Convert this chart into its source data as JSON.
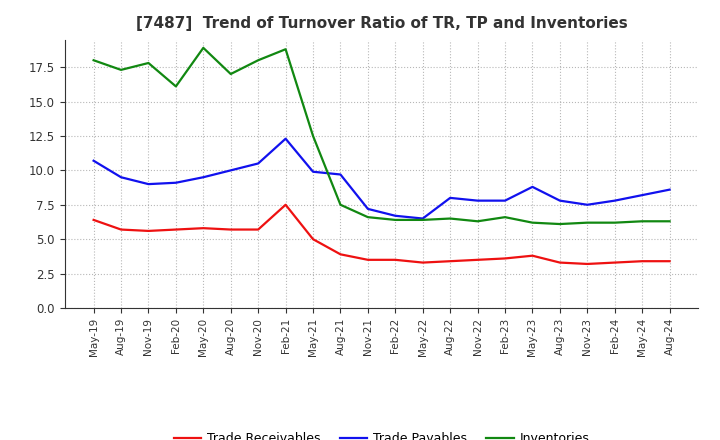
{
  "title": "[7487]  Trend of Turnover Ratio of TR, TP and Inventories",
  "x_labels": [
    "May-19",
    "Aug-19",
    "Nov-19",
    "Feb-20",
    "May-20",
    "Aug-20",
    "Nov-20",
    "Feb-21",
    "May-21",
    "Aug-21",
    "Nov-21",
    "Feb-22",
    "May-22",
    "Aug-22",
    "Nov-22",
    "Feb-23",
    "May-23",
    "Aug-23",
    "Nov-23",
    "Feb-24",
    "May-24",
    "Aug-24"
  ],
  "trade_receivables": [
    6.4,
    5.7,
    5.6,
    5.7,
    5.8,
    5.7,
    5.7,
    7.5,
    5.0,
    3.9,
    3.5,
    3.5,
    3.3,
    3.4,
    3.5,
    3.6,
    3.8,
    3.3,
    3.2,
    3.3,
    3.4,
    3.4
  ],
  "trade_payables": [
    10.7,
    9.5,
    9.0,
    9.1,
    9.5,
    10.0,
    10.5,
    12.3,
    9.9,
    9.7,
    7.2,
    6.7,
    6.5,
    8.0,
    7.8,
    7.8,
    8.8,
    7.8,
    7.5,
    7.8,
    8.2,
    8.6
  ],
  "inventories": [
    18.0,
    17.3,
    17.8,
    16.1,
    18.9,
    17.0,
    18.0,
    18.8,
    12.5,
    7.5,
    6.6,
    6.4,
    6.4,
    6.5,
    6.3,
    6.6,
    6.2,
    6.1,
    6.2,
    6.2,
    6.3,
    6.3
  ],
  "colors": {
    "trade_receivables": "#ee1111",
    "trade_payables": "#1111ee",
    "inventories": "#118811"
  },
  "ylim": [
    0.0,
    19.5
  ],
  "yticks": [
    0.0,
    2.5,
    5.0,
    7.5,
    10.0,
    12.5,
    15.0,
    17.5
  ],
  "background_color": "#ffffff",
  "plot_bg_color": "#ffffff",
  "grid_color": "#888888",
  "title_fontsize": 11,
  "legend_labels": [
    "Trade Receivables",
    "Trade Payables",
    "Inventories"
  ]
}
